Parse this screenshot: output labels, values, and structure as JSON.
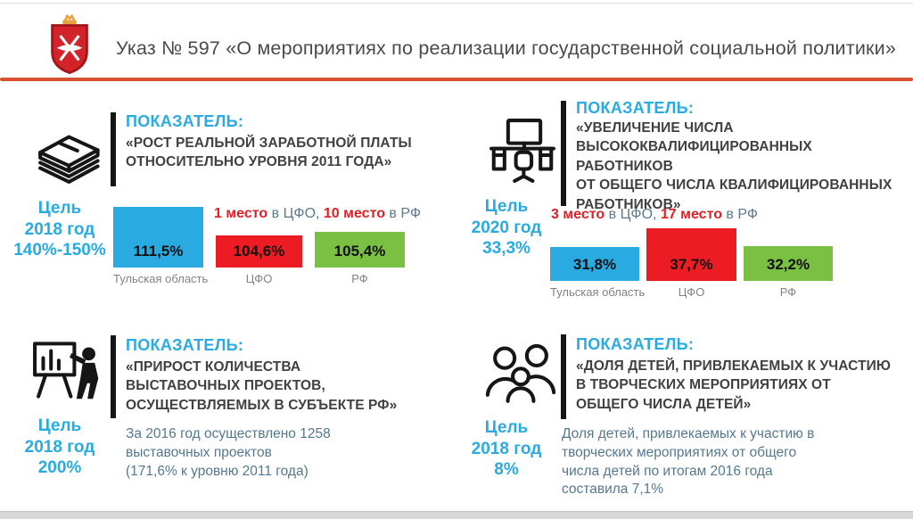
{
  "header": {
    "emblem": "tula-region-coat-of-arms",
    "title": "Указ № 597  «О мероприятиях по реализации государственной социальной политики»"
  },
  "colors": {
    "accent_blue": "#29abe2",
    "title_dark": "#414042",
    "rank_red": "#e31e24",
    "rank_gray": "#5b7a8e",
    "bar_blue": "#29abe2",
    "bar_red": "#ed1c24",
    "bar_green": "#7ac143",
    "caption_gray": "#808285",
    "body_blue_gray": "#54788e",
    "rule_orange": "#d8512e"
  },
  "sections": [
    {
      "icon": "money-banknotes-icon",
      "label": "ПОКАЗАТЕЛЬ:",
      "title": "«РОСТ РЕАЛЬНОЙ ЗАРАБОТНОЙ ПЛАТЫ\nОТНОСИТЕЛЬНО УРОВНЯ 2011 ГОДА»",
      "goal": "Цель\n2018 год\n140%-150%",
      "rank": {
        "part1": "1 место",
        "sep1": " в ЦФО, ",
        "part2": "10 место",
        "sep2": " в РФ"
      }
    },
    {
      "icon": "office-workplace-icon",
      "label": "ПОКАЗАТЕЛЬ:",
      "title": "«УВЕЛИЧЕНИЕ ЧИСЛА\nВЫСОКОКВАЛИФИЦИРОВАННЫХ РАБОТНИКОВ\nОТ ОБЩЕГО ЧИСЛА КВАЛИФИЦИРОВАННЫХ\nРАБОТНИКОВ»",
      "goal": "Цель\n2020 год\n33,3%",
      "rank": {
        "part1": "3 место",
        "sep1": " в ЦФО, ",
        "part2": "17 место",
        "sep2": " в РФ"
      }
    },
    {
      "icon": "presentation-board-icon",
      "label": "ПОКАЗАТЕЛЬ:",
      "title": "«ПРИРОСТ КОЛИЧЕСТВА\nВЫСТАВОЧНЫХ ПРОЕКТОВ,\nОСУЩЕСТВЛЯЕМЫХ В СУБЪЕКТЕ РФ»",
      "goal": "Цель\n2018 год\n200%",
      "body": "За  2016 год осуществлено 1258\nвыставочных проектов\n(171,6% к уровню 2011 года)"
    },
    {
      "icon": "family-children-icon",
      "label": "ПОКАЗАТЕЛЬ:",
      "title": "«ДОЛЯ ДЕТЕЙ, ПРИВЛЕКАЕМЫХ К УЧАСТИЮ\nВ ТВОРЧЕСКИХ МЕРОПРИЯТИЯХ ОТ\nОБЩЕГО ЧИСЛА ДЕТЕЙ»",
      "goal": "Цель\n2018 год\n8%",
      "body": "Доля детей, привлекаемых к участию в\nтворческих мероприятиях от общего\nчисла детей по итогам 2016 года\nсоставила 7,1%"
    }
  ],
  "chart_data": [
    {
      "type": "bar",
      "title": "Рост реальной заработной платы относительно уровня 2011 года",
      "goal": "Цель 2018 год 140%-150%",
      "annotation": "1 место в ЦФО, 10 место в РФ",
      "categories": [
        "Тульская область",
        "ЦФО",
        "РФ"
      ],
      "values": [
        111.5,
        104.6,
        105.4
      ],
      "value_labels": [
        "111,5%",
        "104,6%",
        "105,4%"
      ],
      "bar_colors": [
        "#29abe2",
        "#ed1c24",
        "#7ac143"
      ],
      "unit": "%",
      "legend": "none",
      "grid": false
    },
    {
      "type": "bar",
      "title": "Увеличение числа высококвалифицированных работников от общего числа квалифицированных работников",
      "goal": "Цель 2020 год 33,3%",
      "annotation": "3 место в ЦФО, 17 место в РФ",
      "categories": [
        "Тульская область",
        "ЦФО",
        "РФ"
      ],
      "values": [
        31.8,
        37.7,
        32.2
      ],
      "value_labels": [
        "31,8%",
        "37,7%",
        "32,2%"
      ],
      "bar_colors": [
        "#29abe2",
        "#ed1c24",
        "#7ac143"
      ],
      "unit": "%",
      "legend": "none",
      "grid": false
    }
  ]
}
